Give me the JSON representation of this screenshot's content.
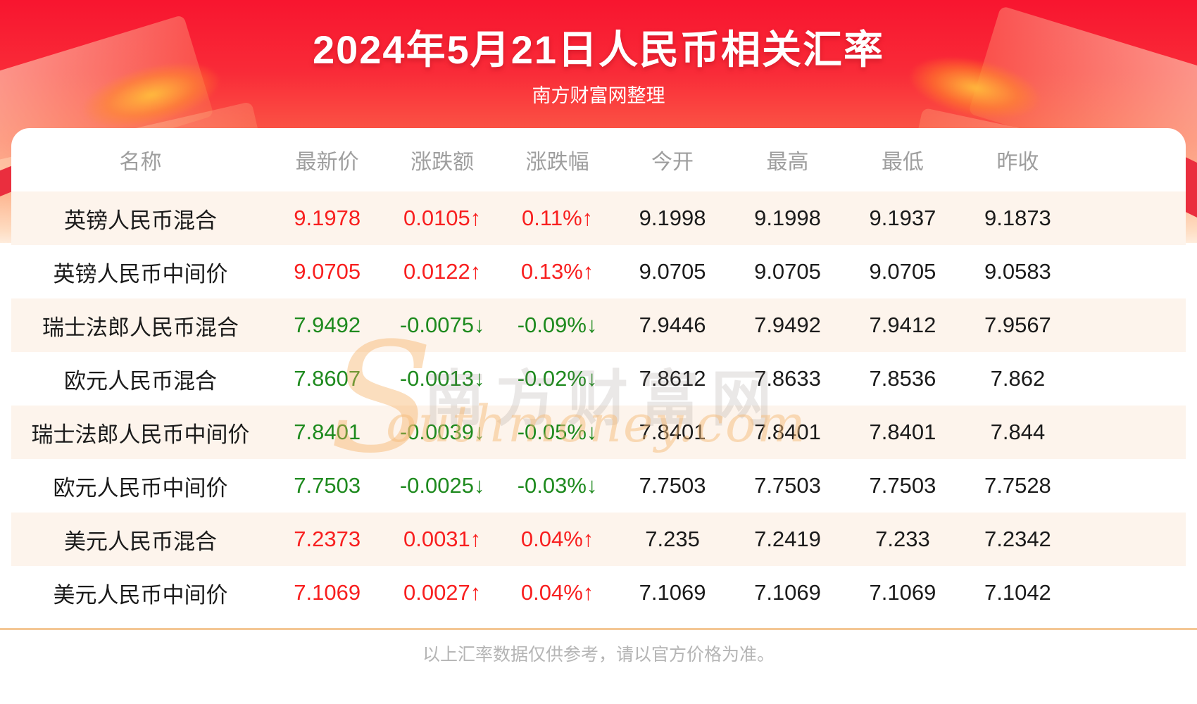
{
  "header": {
    "subtitle": "南方财富网整理"
  },
  "chart_data": {
    "type": "table",
    "title": "2024年5月21日人民币相关汇率",
    "columns": [
      "名称",
      "最新价",
      "涨跌额",
      "涨跌幅",
      "今开",
      "最高",
      "最低",
      "昨收"
    ],
    "rows": [
      {
        "name": "英镑人民币混合",
        "latest": "9.1978",
        "change": "0.0105↑",
        "change_pct": "0.11%↑",
        "open": "9.1998",
        "high": "9.1998",
        "low": "9.1937",
        "prev_close": "9.1873",
        "direction": "up"
      },
      {
        "name": "英镑人民币中间价",
        "latest": "9.0705",
        "change": "0.0122↑",
        "change_pct": "0.13%↑",
        "open": "9.0705",
        "high": "9.0705",
        "low": "9.0705",
        "prev_close": "9.0583",
        "direction": "up"
      },
      {
        "name": "瑞士法郎人民币混合",
        "latest": "7.9492",
        "change": "-0.0075↓",
        "change_pct": "-0.09%↓",
        "open": "7.9446",
        "high": "7.9492",
        "low": "7.9412",
        "prev_close": "7.9567",
        "direction": "down"
      },
      {
        "name": "欧元人民币混合",
        "latest": "7.8607",
        "change": "-0.0013↓",
        "change_pct": "-0.02%↓",
        "open": "7.8612",
        "high": "7.8633",
        "low": "7.8536",
        "prev_close": "7.862",
        "direction": "down"
      },
      {
        "name": "瑞士法郎人民币中间价",
        "latest": "7.8401",
        "change": "-0.0039↓",
        "change_pct": "-0.05%↓",
        "open": "7.8401",
        "high": "7.8401",
        "low": "7.8401",
        "prev_close": "7.844",
        "direction": "down"
      },
      {
        "name": "欧元人民币中间价",
        "latest": "7.7503",
        "change": "-0.0025↓",
        "change_pct": "-0.03%↓",
        "open": "7.7503",
        "high": "7.7503",
        "low": "7.7503",
        "prev_close": "7.7528",
        "direction": "down"
      },
      {
        "name": "美元人民币混合",
        "latest": "7.2373",
        "change": "0.0031↑",
        "change_pct": "0.04%↑",
        "open": "7.235",
        "high": "7.2419",
        "low": "7.233",
        "prev_close": "7.2342",
        "direction": "up"
      },
      {
        "name": "美元人民币中间价",
        "latest": "7.1069",
        "change": "0.0027↑",
        "change_pct": "0.04%↑",
        "open": "7.1069",
        "high": "7.1069",
        "low": "7.1069",
        "prev_close": "7.1042",
        "direction": "up"
      }
    ],
    "legend_position": "none",
    "grid": false
  },
  "watermark": {
    "initial": "S",
    "cn": "南方财富网",
    "en": "outhmoney.com"
  },
  "footer": {
    "disclaimer": "以上汇率数据仅供参考，请以官方价格为准。"
  },
  "colors": {
    "up": "#f81f1f",
    "down": "#1e8a1e",
    "banner_red": "#f8152f",
    "row_alt": "#fdf4ec",
    "divider": "#f4c795"
  }
}
